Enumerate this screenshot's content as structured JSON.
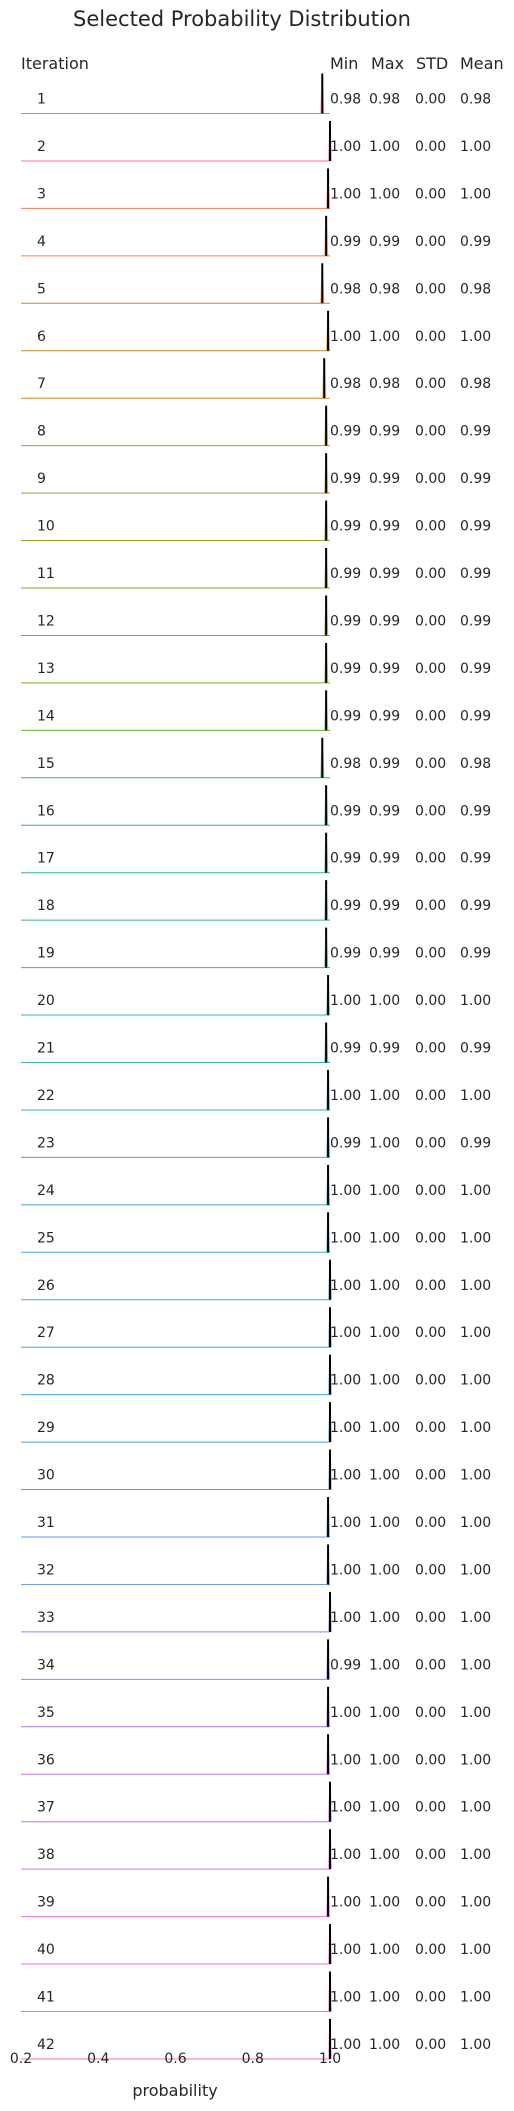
{
  "chart_data": {
    "type": "ridgeline",
    "title": "Selected Probability Distribution",
    "xlabel": "probability",
    "xlim": [
      0.2,
      1.0
    ],
    "xticks": [
      "0.2",
      "0.4",
      "0.6",
      "0.8",
      "1.0"
    ],
    "grid": false,
    "headers": {
      "iteration": "Iteration",
      "min": "Min",
      "max": "Max",
      "std": "STD",
      "mean": "Mean"
    },
    "rows": [
      {
        "iteration": "1",
        "min": "0.98",
        "max": "0.98",
        "std": "0.00",
        "mean": "0.98",
        "x": 0.98,
        "color": "#f77189"
      },
      {
        "iteration": "2",
        "min": "1.00",
        "max": "1.00",
        "std": "0.00",
        "mean": "1.00",
        "x": 1.0,
        "color": "#f7738a"
      },
      {
        "iteration": "3",
        "min": "1.00",
        "max": "1.00",
        "std": "0.00",
        "mean": "1.00",
        "x": 0.995,
        "color": "#f57a5c"
      },
      {
        "iteration": "4",
        "min": "0.99",
        "max": "0.99",
        "std": "0.00",
        "mean": "0.99",
        "x": 0.99,
        "color": "#f17d47"
      },
      {
        "iteration": "5",
        "min": "0.98",
        "max": "0.98",
        "std": "0.00",
        "mean": "0.98",
        "x": 0.98,
        "color": "#e0861f"
      },
      {
        "iteration": "6",
        "min": "1.00",
        "max": "1.00",
        "std": "0.00",
        "mean": "1.00",
        "x": 0.995,
        "color": "#c79119"
      },
      {
        "iteration": "7",
        "min": "0.98",
        "max": "0.98",
        "std": "0.00",
        "mean": "0.98",
        "x": 0.985,
        "color": "#d38c1c"
      },
      {
        "iteration": "8",
        "min": "0.99",
        "max": "0.99",
        "std": "0.00",
        "mean": "0.99",
        "x": 0.99,
        "color": "#b89a1d"
      },
      {
        "iteration": "9",
        "min": "0.99",
        "max": "0.99",
        "std": "0.00",
        "mean": "0.99",
        "x": 0.99,
        "color": "#a89d1f"
      },
      {
        "iteration": "10",
        "min": "0.99",
        "max": "0.99",
        "std": "0.00",
        "mean": "0.99",
        "x": 0.99,
        "color": "#9aa220"
      },
      {
        "iteration": "11",
        "min": "0.99",
        "max": "0.99",
        "std": "0.00",
        "mean": "0.99",
        "x": 0.99,
        "color": "#8ea622"
      },
      {
        "iteration": "12",
        "min": "0.99",
        "max": "0.99",
        "std": "0.00",
        "mean": "0.99",
        "x": 0.99,
        "color": "#82aa24"
      },
      {
        "iteration": "13",
        "min": "0.99",
        "max": "0.99",
        "std": "0.00",
        "mean": "0.99",
        "x": 0.99,
        "color": "#76ad24"
      },
      {
        "iteration": "14",
        "min": "0.99",
        "max": "0.99",
        "std": "0.00",
        "mean": "0.99",
        "x": 0.99,
        "color": "#5fb12f"
      },
      {
        "iteration": "15",
        "min": "0.98",
        "max": "0.99",
        "std": "0.00",
        "mean": "0.98",
        "x": 0.98,
        "color": "#3ab650"
      },
      {
        "iteration": "16",
        "min": "0.99",
        "max": "0.99",
        "std": "0.00",
        "mean": "0.99",
        "x": 0.99,
        "color": "#34b47a"
      },
      {
        "iteration": "17",
        "min": "0.99",
        "max": "0.99",
        "std": "0.00",
        "mean": "0.99",
        "x": 0.99,
        "color": "#35b28f"
      },
      {
        "iteration": "18",
        "min": "0.99",
        "max": "0.99",
        "std": "0.00",
        "mean": "0.99",
        "x": 0.99,
        "color": "#36b09c"
      },
      {
        "iteration": "19",
        "min": "0.99",
        "max": "0.99",
        "std": "0.00",
        "mean": "0.99",
        "x": 0.99,
        "color": "#37afa8"
      },
      {
        "iteration": "20",
        "min": "1.00",
        "max": "1.00",
        "std": "0.00",
        "mean": "1.00",
        "x": 0.995,
        "color": "#38aeb0"
      },
      {
        "iteration": "21",
        "min": "0.99",
        "max": "0.99",
        "std": "0.00",
        "mean": "0.99",
        "x": 0.99,
        "color": "#39adb8"
      },
      {
        "iteration": "22",
        "min": "1.00",
        "max": "1.00",
        "std": "0.00",
        "mean": "1.00",
        "x": 0.995,
        "color": "#3aacbf"
      },
      {
        "iteration": "23",
        "min": "0.99",
        "max": "1.00",
        "std": "0.00",
        "mean": "0.99",
        "x": 0.995,
        "color": "#3babc5"
      },
      {
        "iteration": "24",
        "min": "1.00",
        "max": "1.00",
        "std": "0.00",
        "mean": "1.00",
        "x": 0.995,
        "color": "#3caacb"
      },
      {
        "iteration": "25",
        "min": "1.00",
        "max": "1.00",
        "std": "0.00",
        "mean": "1.00",
        "x": 0.995,
        "color": "#3ea9d2"
      },
      {
        "iteration": "26",
        "min": "1.00",
        "max": "1.00",
        "std": "0.00",
        "mean": "1.00",
        "x": 1.0,
        "color": "#40a7d8"
      },
      {
        "iteration": "27",
        "min": "1.00",
        "max": "1.00",
        "std": "0.00",
        "mean": "1.00",
        "x": 1.0,
        "color": "#42a5de"
      },
      {
        "iteration": "28",
        "min": "1.00",
        "max": "1.00",
        "std": "0.00",
        "mean": "1.00",
        "x": 1.0,
        "color": "#45a3e3"
      },
      {
        "iteration": "29",
        "min": "1.00",
        "max": "1.00",
        "std": "0.00",
        "mean": "1.00",
        "x": 1.0,
        "color": "#4aa0e8"
      },
      {
        "iteration": "30",
        "min": "1.00",
        "max": "1.00",
        "std": "0.00",
        "mean": "1.00",
        "x": 1.0,
        "color": "#549cee"
      },
      {
        "iteration": "31",
        "min": "1.00",
        "max": "1.00",
        "std": "0.00",
        "mean": "1.00",
        "x": 0.995,
        "color": "#6597f2"
      },
      {
        "iteration": "32",
        "min": "1.00",
        "max": "1.00",
        "std": "0.00",
        "mean": "1.00",
        "x": 0.995,
        "color": "#7791f4"
      },
      {
        "iteration": "33",
        "min": "1.00",
        "max": "1.00",
        "std": "0.00",
        "mean": "1.00",
        "x": 1.0,
        "color": "#8a8af4"
      },
      {
        "iteration": "34",
        "min": "0.99",
        "max": "1.00",
        "std": "0.00",
        "mean": "1.00",
        "x": 0.995,
        "color": "#9b83f4"
      },
      {
        "iteration": "35",
        "min": "1.00",
        "max": "1.00",
        "std": "0.00",
        "mean": "1.00",
        "x": 0.995,
        "color": "#ab7bf4"
      },
      {
        "iteration": "36",
        "min": "1.00",
        "max": "1.00",
        "std": "0.00",
        "mean": "1.00",
        "x": 0.995,
        "color": "#bb74f4"
      },
      {
        "iteration": "37",
        "min": "1.00",
        "max": "1.00",
        "std": "0.00",
        "mean": "1.00",
        "x": 1.0,
        "color": "#cc6ff3"
      },
      {
        "iteration": "38",
        "min": "1.00",
        "max": "1.00",
        "std": "0.00",
        "mean": "1.00",
        "x": 1.0,
        "color": "#dc6bf1"
      },
      {
        "iteration": "39",
        "min": "1.00",
        "max": "1.00",
        "std": "0.00",
        "mean": "1.00",
        "x": 0.995,
        "color": "#ec69e8"
      },
      {
        "iteration": "40",
        "min": "1.00",
        "max": "1.00",
        "std": "0.00",
        "mean": "1.00",
        "x": 1.0,
        "color": "#f26bd8"
      },
      {
        "iteration": "41",
        "min": "1.00",
        "max": "1.00",
        "std": "0.00",
        "mean": "1.00",
        "x": 1.0,
        "color": "#f56dc9"
      },
      {
        "iteration": "42",
        "min": "1.00",
        "max": "1.00",
        "std": "0.00",
        "mean": "1.00",
        "x": 1.0,
        "color": "#f66fb8"
      }
    ]
  }
}
